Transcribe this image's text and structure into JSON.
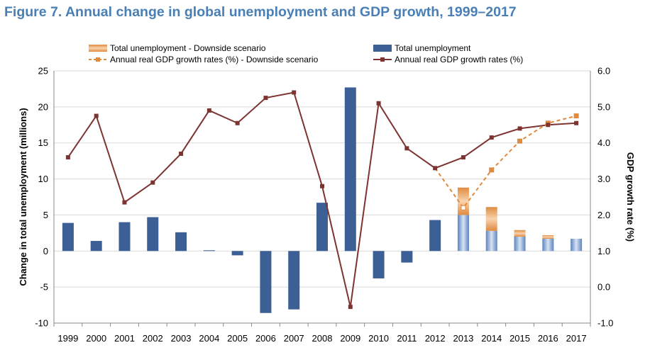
{
  "title": "Figure 7. Annual change in global unemployment and GDP growth, 1999–2017",
  "colors": {
    "unemployment": "#3c5f95",
    "unemployment_projection": "#5b84c0",
    "downside_unemployment": "#e08a3e",
    "gdp": "#7d3431",
    "gdp_downside": "#e08a3e",
    "grid": "#d9d9d9"
  },
  "chart_data": {
    "type": "bar",
    "categories": [
      "1999",
      "2000",
      "2001",
      "2002",
      "2003",
      "2004",
      "2005",
      "2006",
      "2007",
      "2008",
      "2009",
      "2010",
      "2011",
      "2012",
      "2013",
      "2014",
      "2015",
      "2016",
      "2017"
    ],
    "ylabel": "Change in total unemployment (millions)",
    "y2label": "GDP growth rate (%)",
    "ylim": [
      -10,
      25
    ],
    "y2lim": [
      -1.0,
      6.0
    ],
    "yticks": [
      "25",
      "20",
      "15",
      "10",
      "5",
      "0",
      "-5",
      "-10"
    ],
    "y2ticks": [
      "6.0",
      "5.0",
      "4.0",
      "3.0",
      "2.0",
      "1.0",
      "0.0",
      "-1.0"
    ],
    "grid": true,
    "legend_position": "top",
    "legend": [
      {
        "label": "Total unemployment - Downside scenario",
        "kind": "bar-orange"
      },
      {
        "label": "Total unemployment",
        "kind": "bar-blue"
      },
      {
        "label": "Annual real GDP growth rates (%) - Downside scenario",
        "kind": "line-dashed"
      },
      {
        "label": "Annual real GDP growth rates (%)",
        "kind": "line-solid"
      }
    ],
    "series": [
      {
        "name": "Total unemployment",
        "axis": "left",
        "type": "bar",
        "values": [
          3.9,
          1.4,
          4.0,
          4.7,
          2.6,
          0.1,
          -0.6,
          -8.6,
          -8.1,
          6.7,
          22.7,
          -3.8,
          -1.6,
          4.3,
          5.0,
          2.8,
          2.0,
          1.7,
          1.7
        ]
      },
      {
        "name": "Total unemployment - Downside scenario",
        "axis": "left",
        "type": "bar-stacked-increment",
        "values": [
          null,
          null,
          null,
          null,
          null,
          null,
          null,
          null,
          null,
          null,
          null,
          null,
          null,
          null,
          3.8,
          3.3,
          0.9,
          0.5,
          0
        ]
      },
      {
        "name": "Annual real GDP growth rates (%)",
        "axis": "right",
        "type": "line",
        "values": [
          3.6,
          4.75,
          2.35,
          2.9,
          3.7,
          4.9,
          4.55,
          5.25,
          5.4,
          2.8,
          -0.55,
          5.1,
          3.85,
          3.3,
          3.6,
          4.15,
          4.4,
          4.5,
          4.55
        ]
      },
      {
        "name": "Annual real GDP growth rates (%) - Downside scenario",
        "axis": "right",
        "type": "line-dashed",
        "values": [
          null,
          null,
          null,
          null,
          null,
          null,
          null,
          null,
          null,
          null,
          null,
          null,
          null,
          3.3,
          2.2,
          3.25,
          4.05,
          4.55,
          4.75
        ]
      }
    ]
  }
}
